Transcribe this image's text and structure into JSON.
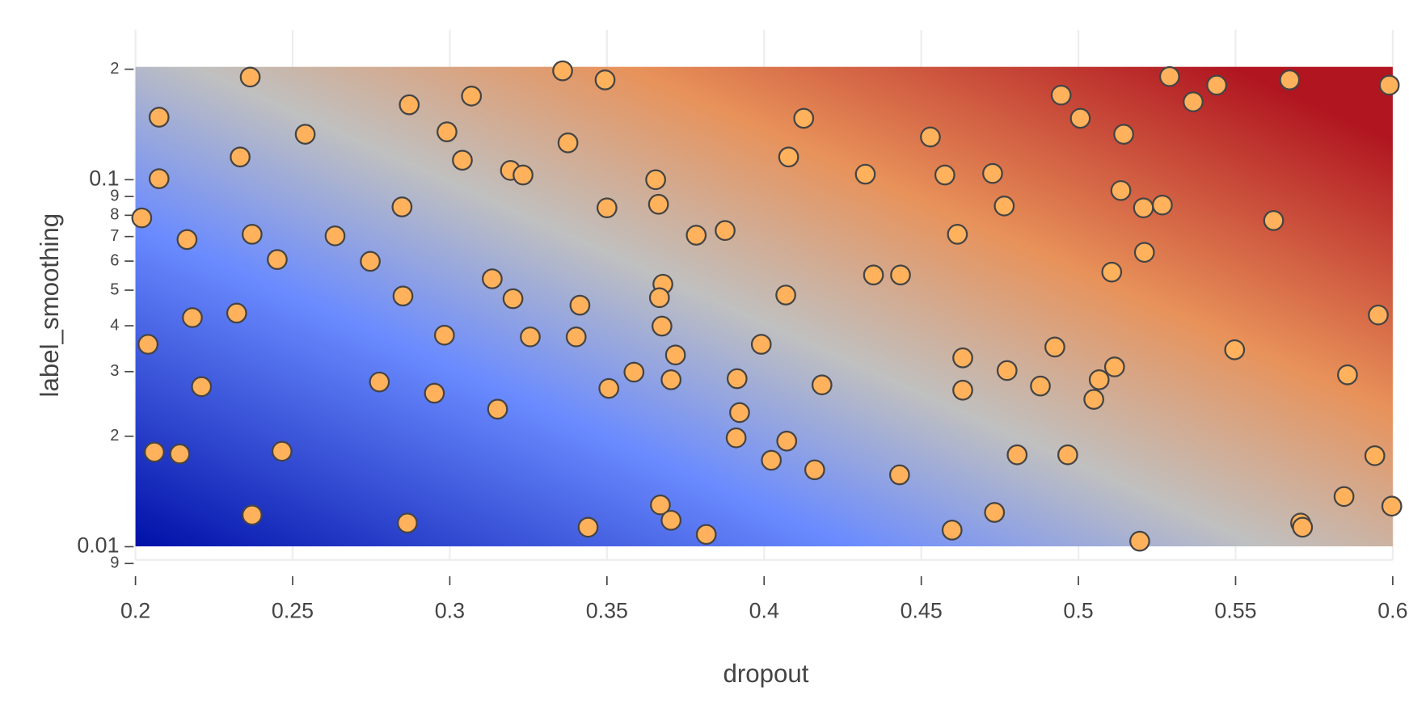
{
  "chart_data": {
    "type": "scatter",
    "x_label": "dropout",
    "y_label": "label_smoothing",
    "xlim": [
      0.2,
      0.6
    ],
    "xticks": [
      0.2,
      0.25,
      0.3,
      0.35,
      0.4,
      0.45,
      0.5,
      0.55,
      0.6
    ],
    "ylim": [
      0.009,
      0.203
    ],
    "yscale": "log",
    "yticks": [
      {
        "value": 0.2,
        "label": "2"
      },
      0.1,
      {
        "value": 0.09,
        "label": "9"
      },
      {
        "value": 0.08,
        "label": "8"
      },
      {
        "value": 0.07,
        "label": "7"
      },
      {
        "value": 0.06,
        "label": "6"
      },
      {
        "value": 0.05,
        "label": "5"
      },
      {
        "value": 0.04,
        "label": "4"
      },
      {
        "value": 0.03,
        "label": "3"
      },
      {
        "value": 0.02,
        "label": "2"
      },
      0.01,
      {
        "value": 0.009,
        "label": "9"
      }
    ],
    "grid": true,
    "color": "#ffb15c",
    "x": [
      0.2365,
      0.2075,
      0.2075,
      0.202,
      0.2164,
      0.2333,
      0.254,
      0.2371,
      0.2451,
      0.2181,
      0.2322,
      0.204,
      0.221,
      0.206,
      0.2141,
      0.2466,
      0.2371,
      0.2865,
      0.2871,
      0.2635,
      0.2747,
      0.2848,
      0.2851,
      0.2776,
      0.2951,
      0.2983,
      0.2991,
      0.304,
      0.3069,
      0.3193,
      0.3233,
      0.3359,
      0.3376,
      0.3494,
      0.3135,
      0.3201,
      0.3256,
      0.3152,
      0.3402,
      0.3414,
      0.35,
      0.3506,
      0.3586,
      0.344,
      0.3655,
      0.3664,
      0.3678,
      0.3667,
      0.3675,
      0.3718,
      0.3704,
      0.367,
      0.3704,
      0.3816,
      0.3784,
      0.3876,
      0.3914,
      0.3922,
      0.3911,
      0.3991,
      0.4023,
      0.4069,
      0.4072,
      0.4078,
      0.4126,
      0.4184,
      0.4161,
      0.4322,
      0.4348,
      0.4434,
      0.4431,
      0.4529,
      0.4575,
      0.4615,
      0.4632,
      0.4632,
      0.4598,
      0.4727,
      0.4764,
      0.4773,
      0.4733,
      0.4805,
      0.4879,
      0.4925,
      0.4966,
      0.4945,
      0.5006,
      0.5049,
      0.5066,
      0.5115,
      0.5106,
      0.5135,
      0.5144,
      0.5207,
      0.5267,
      0.521,
      0.5195,
      0.529,
      0.5365,
      0.544,
      0.5497,
      0.5621,
      0.5672,
      0.5707,
      0.5713,
      0.5845,
      0.5856,
      0.5943,
      0.5954,
      0.5989,
      0.5997
    ],
    "values": [
      0.1904,
      0.148,
      0.1006,
      0.0787,
      0.0687,
      0.1153,
      0.133,
      0.071,
      0.0606,
      0.0421,
      0.0433,
      0.0356,
      0.0273,
      0.0181,
      0.0179,
      0.0182,
      0.0122,
      0.0116,
      0.16,
      0.0703,
      0.0599,
      0.0843,
      0.0482,
      0.0281,
      0.0262,
      0.0377,
      0.135,
      0.113,
      0.169,
      0.106,
      0.103,
      0.198,
      0.126,
      0.187,
      0.0537,
      0.0474,
      0.0373,
      0.0237,
      0.0373,
      0.0455,
      0.0838,
      0.027,
      0.0299,
      0.0113,
      0.1,
      0.0857,
      0.0519,
      0.0477,
      0.0399,
      0.0333,
      0.0285,
      0.013,
      0.0118,
      0.0108,
      0.0706,
      0.0727,
      0.0287,
      0.0232,
      0.0198,
      0.0356,
      0.0172,
      0.0485,
      0.0194,
      0.1153,
      0.147,
      0.0276,
      0.0162,
      0.1035,
      0.055,
      0.055,
      0.0157,
      0.1307,
      0.103,
      0.071,
      0.0327,
      0.0267,
      0.0111,
      0.104,
      0.0848,
      0.0302,
      0.0124,
      0.0178,
      0.0274,
      0.035,
      0.0178,
      0.17,
      0.147,
      0.0252,
      0.0285,
      0.0309,
      0.056,
      0.0934,
      0.133,
      0.0838,
      0.0853,
      0.0634,
      0.01035,
      0.191,
      0.163,
      0.181,
      0.0344,
      0.0774,
      0.187,
      0.0116,
      0.0113,
      0.0137,
      0.0294,
      0.0177,
      0.0428,
      0.181,
      0.0129
    ]
  }
}
